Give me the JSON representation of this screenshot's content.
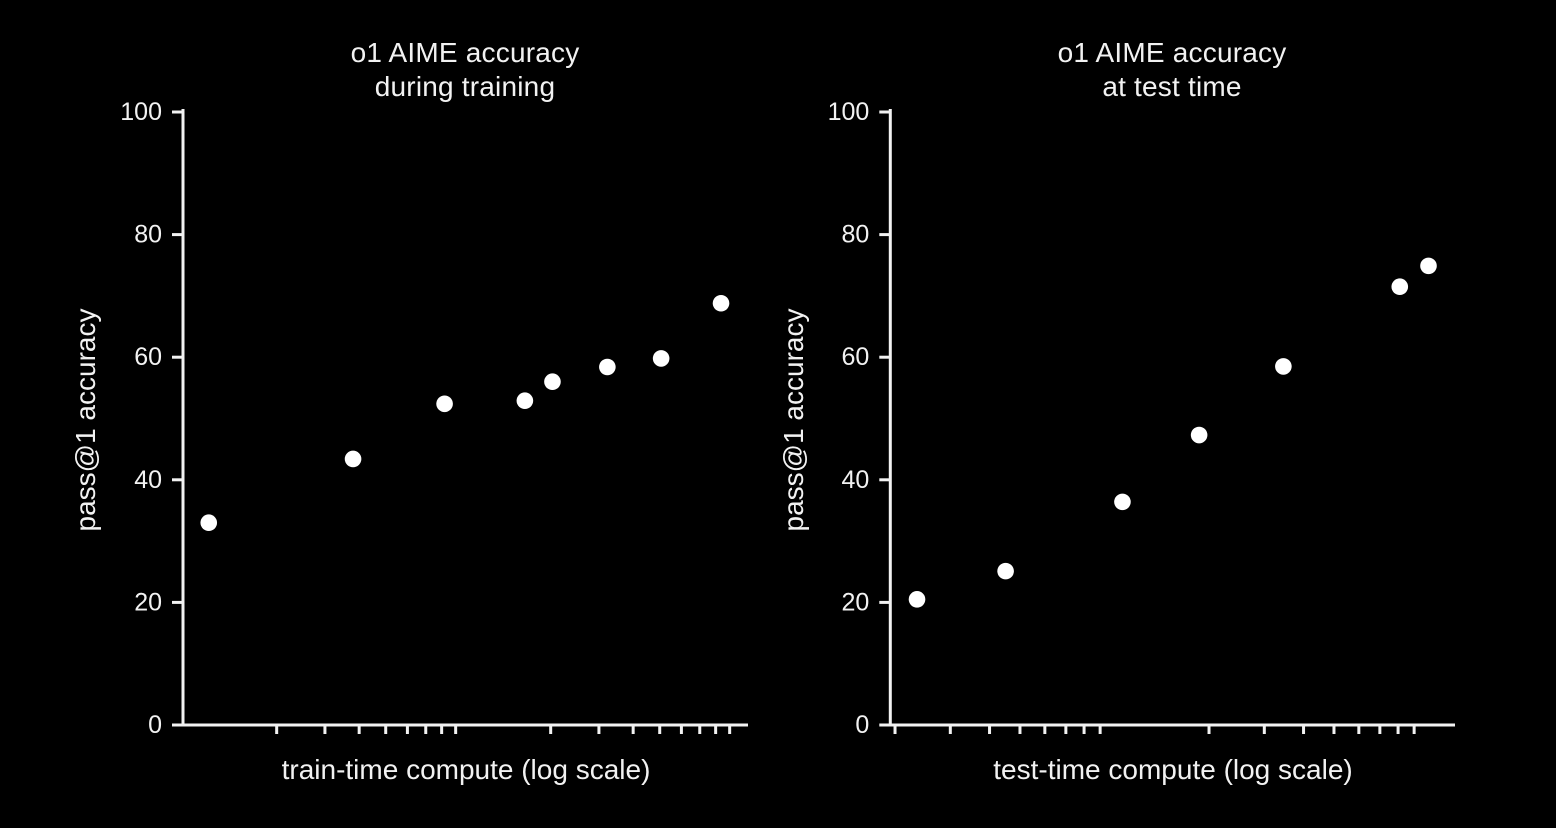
{
  "figure": {
    "background": "#000000",
    "text_color": "#f2f2f2",
    "axis_color": "#f2f2f2",
    "point_color": "#ffffff"
  },
  "chart_data": [
    {
      "type": "scatter",
      "title_line1": "o1 AIME accuracy",
      "title_line2": "during training",
      "xlabel": "train-time compute (log scale)",
      "ylabel": "pass@1 accuracy",
      "x_scale": "log",
      "x_axis_numeric_labels": false,
      "x_units_note": "relative compute, unlabeled log axis spanning ~2 decades",
      "ylim": [
        0,
        100
      ],
      "y_ticks": [
        0,
        20,
        40,
        60,
        80,
        100
      ],
      "x_minor_ticks": [
        2,
        3,
        4,
        5,
        6,
        7,
        8,
        9,
        20,
        30,
        40,
        50,
        60,
        70,
        80,
        90
      ],
      "grid": false,
      "legend": null,
      "points": [
        {
          "x": 1.13,
          "y": 33.0
        },
        {
          "x": 3.8,
          "y": 43.4
        },
        {
          "x": 8.2,
          "y": 52.4
        },
        {
          "x": 16.1,
          "y": 52.9
        },
        {
          "x": 20.3,
          "y": 56.0
        },
        {
          "x": 32.2,
          "y": 58.4
        },
        {
          "x": 50.6,
          "y": 59.8
        },
        {
          "x": 83.7,
          "y": 68.8
        }
      ]
    },
    {
      "type": "scatter",
      "title_line1": "o1 AIME accuracy",
      "title_line2": "at test time",
      "xlabel": "test-time compute (log scale)",
      "ylabel": "pass@1 accuracy",
      "x_scale": "log",
      "x_axis_numeric_labels": false,
      "x_units_note": "relative compute, unlabeled log axis spanning ~2 decades",
      "ylim": [
        0,
        100
      ],
      "y_ticks": [
        0,
        20,
        40,
        60,
        80,
        100
      ],
      "x_minor_ticks": [
        2,
        3,
        4,
        5,
        6,
        7,
        8,
        9,
        20,
        30,
        40,
        50,
        60,
        70,
        80,
        90
      ],
      "grid": false,
      "legend": null,
      "points": [
        {
          "x": 2.35,
          "y": 20.5
        },
        {
          "x": 4.5,
          "y": 25.1
        },
        {
          "x": 10.6,
          "y": 36.4
        },
        {
          "x": 18.6,
          "y": 47.3
        },
        {
          "x": 34.5,
          "y": 58.5
        },
        {
          "x": 81.0,
          "y": 71.5
        },
        {
          "x": 100.0,
          "y": 74.9
        }
      ]
    }
  ]
}
